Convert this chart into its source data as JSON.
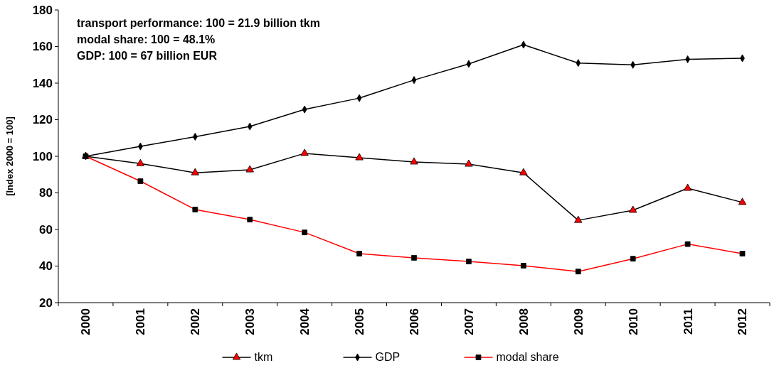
{
  "chart_data": {
    "type": "line",
    "ylabel": "[Index 2000 = 100]",
    "categories": [
      "2000",
      "2001",
      "2002",
      "2003",
      "2004",
      "2005",
      "2006",
      "2007",
      "2008",
      "2009",
      "2010",
      "2011",
      "2012"
    ],
    "ylim": [
      20,
      180
    ],
    "yticks": [
      20,
      40,
      60,
      80,
      100,
      120,
      140,
      160,
      180
    ],
    "grid": false,
    "legend": "bottom",
    "line_style": "solid",
    "annotations": [
      "transport performance: 100 = 21.9 billion tkm",
      "modal share: 100 = 48.1%",
      "GDP: 100 = 67 billion EUR"
    ],
    "series": [
      {
        "name": "tkm",
        "color": "#000000",
        "marker": "triangle",
        "colors": [
          "#ff0000",
          "#ff0000",
          "#ff0000",
          "#ff0000",
          "#ff0000",
          "#ff0000",
          "#ff0000",
          "#ff0000",
          "#ff0000",
          "#ff0000",
          "#ff0000",
          "#ff0000",
          "#ff0000"
        ],
        "values": [
          100,
          96,
          91,
          92.6,
          101.6,
          99.2,
          96.9,
          95.7,
          91,
          65,
          70.5,
          82.5,
          74.8
        ]
      },
      {
        "name": "GDP",
        "color": "#000000",
        "marker": "diamond",
        "values": [
          100,
          105.4,
          110.7,
          116.3,
          125.6,
          131.8,
          141.7,
          150.5,
          161,
          151,
          150,
          153,
          153.6
        ]
      },
      {
        "name": "modal share",
        "color": "#ff0000",
        "marker": "square",
        "colors": [
          "#000000",
          "#000000",
          "#000000",
          "#000000",
          "#000000",
          "#000000",
          "#000000",
          "#000000",
          "#000000",
          "#000000",
          "#000000",
          "#000000",
          "#000000"
        ],
        "values": [
          100,
          86.4,
          70.9,
          65.4,
          58.4,
          46.8,
          44.5,
          42.5,
          40.2,
          37,
          44,
          52,
          46.8
        ]
      }
    ]
  }
}
